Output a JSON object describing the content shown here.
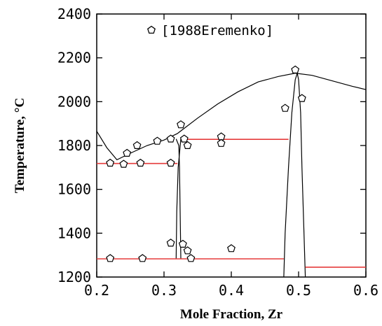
{
  "chart_data": {
    "type": "scatter",
    "title": "",
    "xlabel": "Mole Fraction, Zr",
    "ylabel": "Temperature, °C",
    "xlim": [
      0.2,
      0.6
    ],
    "ylim": [
      1200,
      2400
    ],
    "x_ticks": [
      0.2,
      0.3,
      0.4,
      0.5,
      0.6
    ],
    "x_tick_labels": [
      "0.2",
      "0.3",
      "0.4",
      "0.5",
      "0.6"
    ],
    "y_ticks": [
      1200,
      1400,
      1600,
      1800,
      2000,
      2200,
      2400
    ],
    "y_tick_labels": [
      "1200",
      "1400",
      "1600",
      "1800",
      "2000",
      "2200",
      "2400"
    ],
    "grid": false,
    "legend": {
      "position": "top-center",
      "entries": [
        "[1988Eremenko]"
      ]
    },
    "series": [
      {
        "name": "[1988Eremenko]",
        "marker": "pentagon",
        "points": [
          [
            0.22,
            1720
          ],
          [
            0.24,
            1715
          ],
          [
            0.245,
            1765
          ],
          [
            0.265,
            1720
          ],
          [
            0.26,
            1800
          ],
          [
            0.29,
            1820
          ],
          [
            0.31,
            1830
          ],
          [
            0.31,
            1720
          ],
          [
            0.325,
            1895
          ],
          [
            0.33,
            1830
          ],
          [
            0.335,
            1800
          ],
          [
            0.385,
            1840
          ],
          [
            0.385,
            1810
          ],
          [
            0.48,
            1970
          ],
          [
            0.495,
            2145
          ],
          [
            0.505,
            2015
          ],
          [
            0.22,
            1285
          ],
          [
            0.268,
            1285
          ],
          [
            0.31,
            1355
          ],
          [
            0.328,
            1350
          ],
          [
            0.335,
            1320
          ],
          [
            0.34,
            1285
          ],
          [
            0.4,
            1330
          ]
        ]
      }
    ],
    "lines": [
      {
        "kind": "liquidus",
        "color": "#000000",
        "points": [
          [
            0.2,
            1865
          ],
          [
            0.215,
            1790
          ],
          [
            0.23,
            1735
          ],
          [
            0.25,
            1765
          ],
          [
            0.275,
            1800
          ],
          [
            0.3,
            1825
          ],
          [
            0.32,
            1855
          ],
          [
            0.35,
            1925
          ],
          [
            0.38,
            1990
          ],
          [
            0.41,
            2045
          ],
          [
            0.44,
            2090
          ],
          [
            0.47,
            2115
          ],
          [
            0.495,
            2130
          ],
          [
            0.52,
            2120
          ],
          [
            0.55,
            2095
          ],
          [
            0.58,
            2070
          ],
          [
            0.6,
            2055
          ]
        ]
      },
      {
        "kind": "phase-boundary",
        "color": "#000000",
        "points": [
          [
            0.318,
            1830
          ],
          [
            0.322,
            1800
          ],
          [
            0.323,
            1700
          ],
          [
            0.324,
            1500
          ],
          [
            0.325,
            1283
          ]
        ]
      },
      {
        "kind": "phase-boundary",
        "color": "#000000",
        "points": [
          [
            0.318,
            1283
          ],
          [
            0.319,
            1500
          ],
          [
            0.321,
            1700
          ],
          [
            0.325,
            1830
          ],
          [
            0.332,
            1830
          ]
        ]
      },
      {
        "kind": "phase-boundary",
        "color": "#000000",
        "points": [
          [
            0.478,
            1200
          ],
          [
            0.48,
            1400
          ],
          [
            0.485,
            1700
          ],
          [
            0.49,
            1950
          ],
          [
            0.495,
            2100
          ],
          [
            0.498,
            2130
          ]
        ]
      },
      {
        "kind": "phase-boundary",
        "color": "#000000",
        "points": [
          [
            0.498,
            2130
          ],
          [
            0.5,
            2100
          ],
          [
            0.503,
            1950
          ],
          [
            0.505,
            1700
          ],
          [
            0.508,
            1400
          ],
          [
            0.51,
            1200
          ]
        ]
      },
      {
        "kind": "invariant",
        "color": "#e53b3b",
        "points": [
          [
            0.2,
            1718
          ],
          [
            0.32,
            1718
          ]
        ]
      },
      {
        "kind": "invariant",
        "color": "#e53b3b",
        "points": [
          [
            0.325,
            1828
          ],
          [
            0.485,
            1828
          ]
        ]
      },
      {
        "kind": "invariant",
        "color": "#e53b3b",
        "points": [
          [
            0.2,
            1283
          ],
          [
            0.478,
            1283
          ]
        ]
      },
      {
        "kind": "invariant",
        "color": "#e53b3b",
        "points": [
          [
            0.51,
            1245
          ],
          [
            0.6,
            1245
          ]
        ]
      }
    ]
  }
}
